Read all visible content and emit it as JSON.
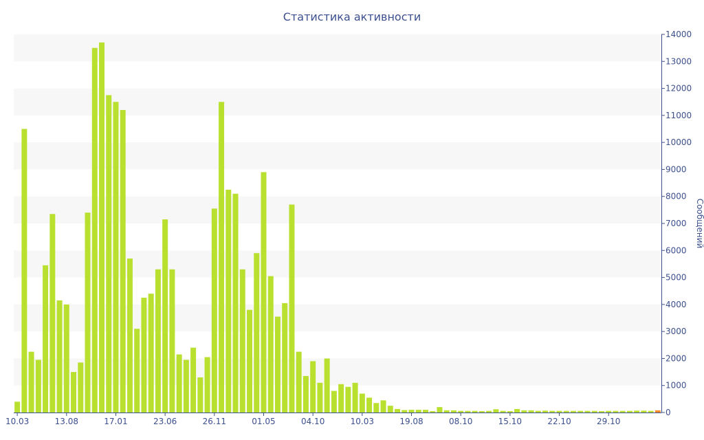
{
  "colors": {
    "bar": "#b9e02f",
    "band": "#f7f7f7",
    "axis_text": "#3c4f8e",
    "axis_line": "#3c4f8e",
    "last_bar": "#ff8a2a"
  },
  "chart_data": {
    "type": "bar",
    "title": "Статистика активности",
    "ylabel": "Сообщений",
    "ylim": [
      0,
      14000
    ],
    "y_ticks": [
      0,
      1000,
      2000,
      3000,
      4000,
      5000,
      6000,
      7000,
      8000,
      9000,
      10000,
      11000,
      12000,
      13000,
      14000
    ],
    "y_axis_position": "right",
    "grid": "alternating horizontal bands",
    "x_tick_labels": [
      "10.03",
      "13.08",
      "17.01",
      "23.06",
      "26.11",
      "01.05",
      "04.10",
      "10.03",
      "19.08",
      "08.10",
      "15.10",
      "22.10",
      "29.10"
    ],
    "x_tick_indices": [
      0,
      7,
      14,
      21,
      28,
      35,
      42,
      49,
      56,
      63,
      70,
      77,
      84
    ],
    "values": [
      400,
      10500,
      2250,
      1950,
      5450,
      7350,
      4150,
      4000,
      1500,
      1850,
      7400,
      13500,
      13700,
      11750,
      11500,
      11200,
      5700,
      3100,
      4250,
      4400,
      5300,
      7150,
      5300,
      2150,
      1950,
      2400,
      1300,
      2050,
      7550,
      11500,
      8250,
      8100,
      5300,
      3800,
      5900,
      8900,
      5050,
      3550,
      4050,
      7700,
      2250,
      1350,
      1900,
      1100,
      2000,
      800,
      1050,
      950,
      1100,
      700,
      550,
      350,
      450,
      250,
      130,
      90,
      100,
      100,
      100,
      50,
      200,
      80,
      80,
      60,
      60,
      60,
      50,
      60,
      120,
      60,
      50,
      130,
      80,
      80,
      60,
      70,
      60,
      60,
      60,
      60,
      60,
      60,
      60,
      50,
      60,
      60,
      60,
      60,
      70,
      70,
      60,
      80
    ]
  }
}
